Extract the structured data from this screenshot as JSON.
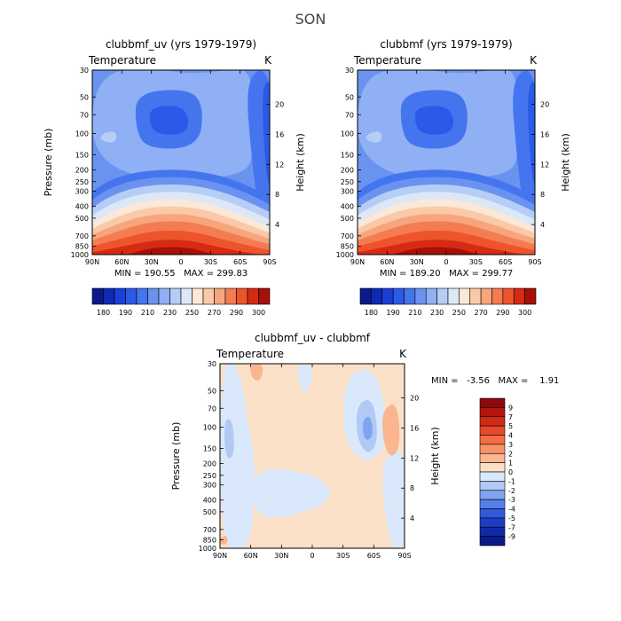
{
  "figure_title": "SON",
  "chart_data": [
    {
      "type": "heatmap",
      "title": "clubbmf_uv (yrs 1979-1979)",
      "left_label": "Temperature",
      "right_label": "K",
      "xlabel": "",
      "ylabel": "Pressure (mb)",
      "y2label": "Height (km)",
      "x_ticks": [
        "90N",
        "60N",
        "30N",
        "0",
        "30S",
        "60S",
        "90S"
      ],
      "y_ticks": [
        30,
        50,
        70,
        100,
        150,
        200,
        250,
        300,
        400,
        500,
        700,
        850,
        1000
      ],
      "y2_ticks": [
        4,
        8,
        12,
        16,
        20
      ],
      "ylim": [
        1000,
        30
      ],
      "stats": "MIN = 190.55   MAX = 299.83",
      "colorbar_labels": [
        "180",
        "190",
        "210",
        "230",
        "250",
        "270",
        "290",
        "300"
      ],
      "colorbar_levels": [
        180,
        185,
        190,
        200,
        210,
        220,
        230,
        240,
        250,
        260,
        270,
        280,
        290,
        295,
        300
      ],
      "colorbar_colors": [
        "#0a1a8c",
        "#0d2ab5",
        "#1a3fd9",
        "#2b5ae8",
        "#4575ee",
        "#6a93f0",
        "#8fb0f4",
        "#b6cdf6",
        "#dce8f8",
        "#fbe8d6",
        "#f9c9a8",
        "#f7a57c",
        "#f47c52",
        "#ee542c",
        "#d52a14",
        "#a80f07"
      ]
    },
    {
      "type": "heatmap",
      "title": "clubbmf (yrs 1979-1979)",
      "left_label": "Temperature",
      "right_label": "K",
      "xlabel": "",
      "ylabel": "",
      "y2label": "Height (km)",
      "x_ticks": [
        "90N",
        "60N",
        "30N",
        "0",
        "30S",
        "60S",
        "90S"
      ],
      "y_ticks": [
        30,
        50,
        70,
        100,
        150,
        200,
        250,
        300,
        400,
        500,
        700,
        850,
        1000
      ],
      "y2_ticks": [
        4,
        8,
        12,
        16,
        20
      ],
      "ylim": [
        1000,
        30
      ],
      "stats": "MIN = 189.20   MAX = 299.77",
      "colorbar_labels": [
        "180",
        "190",
        "210",
        "230",
        "250",
        "270",
        "290",
        "300"
      ],
      "colorbar_levels": [
        180,
        185,
        190,
        200,
        210,
        220,
        230,
        240,
        250,
        260,
        270,
        280,
        290,
        295,
        300
      ],
      "colorbar_colors": [
        "#0a1a8c",
        "#0d2ab5",
        "#1a3fd9",
        "#2b5ae8",
        "#4575ee",
        "#6a93f0",
        "#8fb0f4",
        "#b6cdf6",
        "#dce8f8",
        "#fbe8d6",
        "#f9c9a8",
        "#f7a57c",
        "#f47c52",
        "#ee542c",
        "#d52a14",
        "#a80f07"
      ]
    },
    {
      "type": "heatmap",
      "title": "clubbmf_uv - clubbmf",
      "left_label": "Temperature",
      "right_label": "K",
      "xlabel": "",
      "ylabel": "Pressure (mb)",
      "y2label": "Height (km)",
      "x_ticks": [
        "90N",
        "60N",
        "30N",
        "0",
        "30S",
        "60S",
        "90S"
      ],
      "y_ticks": [
        30,
        50,
        70,
        100,
        150,
        200,
        250,
        300,
        400,
        500,
        700,
        850,
        1000
      ],
      "y2_ticks": [
        4,
        8,
        12,
        16,
        20
      ],
      "ylim": [
        1000,
        30
      ],
      "stats": "MIN =   -3.56   MAX =    1.91",
      "colorbar_labels": [
        "9",
        "7",
        "5",
        "4",
        "3",
        "2",
        "1",
        "0",
        "-1",
        "-2",
        "-3",
        "-4",
        "-5",
        "-7",
        "-9"
      ],
      "colorbar_colors": [
        "#8c0a0a",
        "#b3150d",
        "#d12a14",
        "#e8492a",
        "#f56c45",
        "#f89268",
        "#f9b690",
        "#fbe0c8",
        "#d9e8fb",
        "#b0c9f5",
        "#7fa5f0",
        "#567fea",
        "#3159dc",
        "#1d3dc4",
        "#1229a6",
        "#0a1a88"
      ]
    }
  ]
}
